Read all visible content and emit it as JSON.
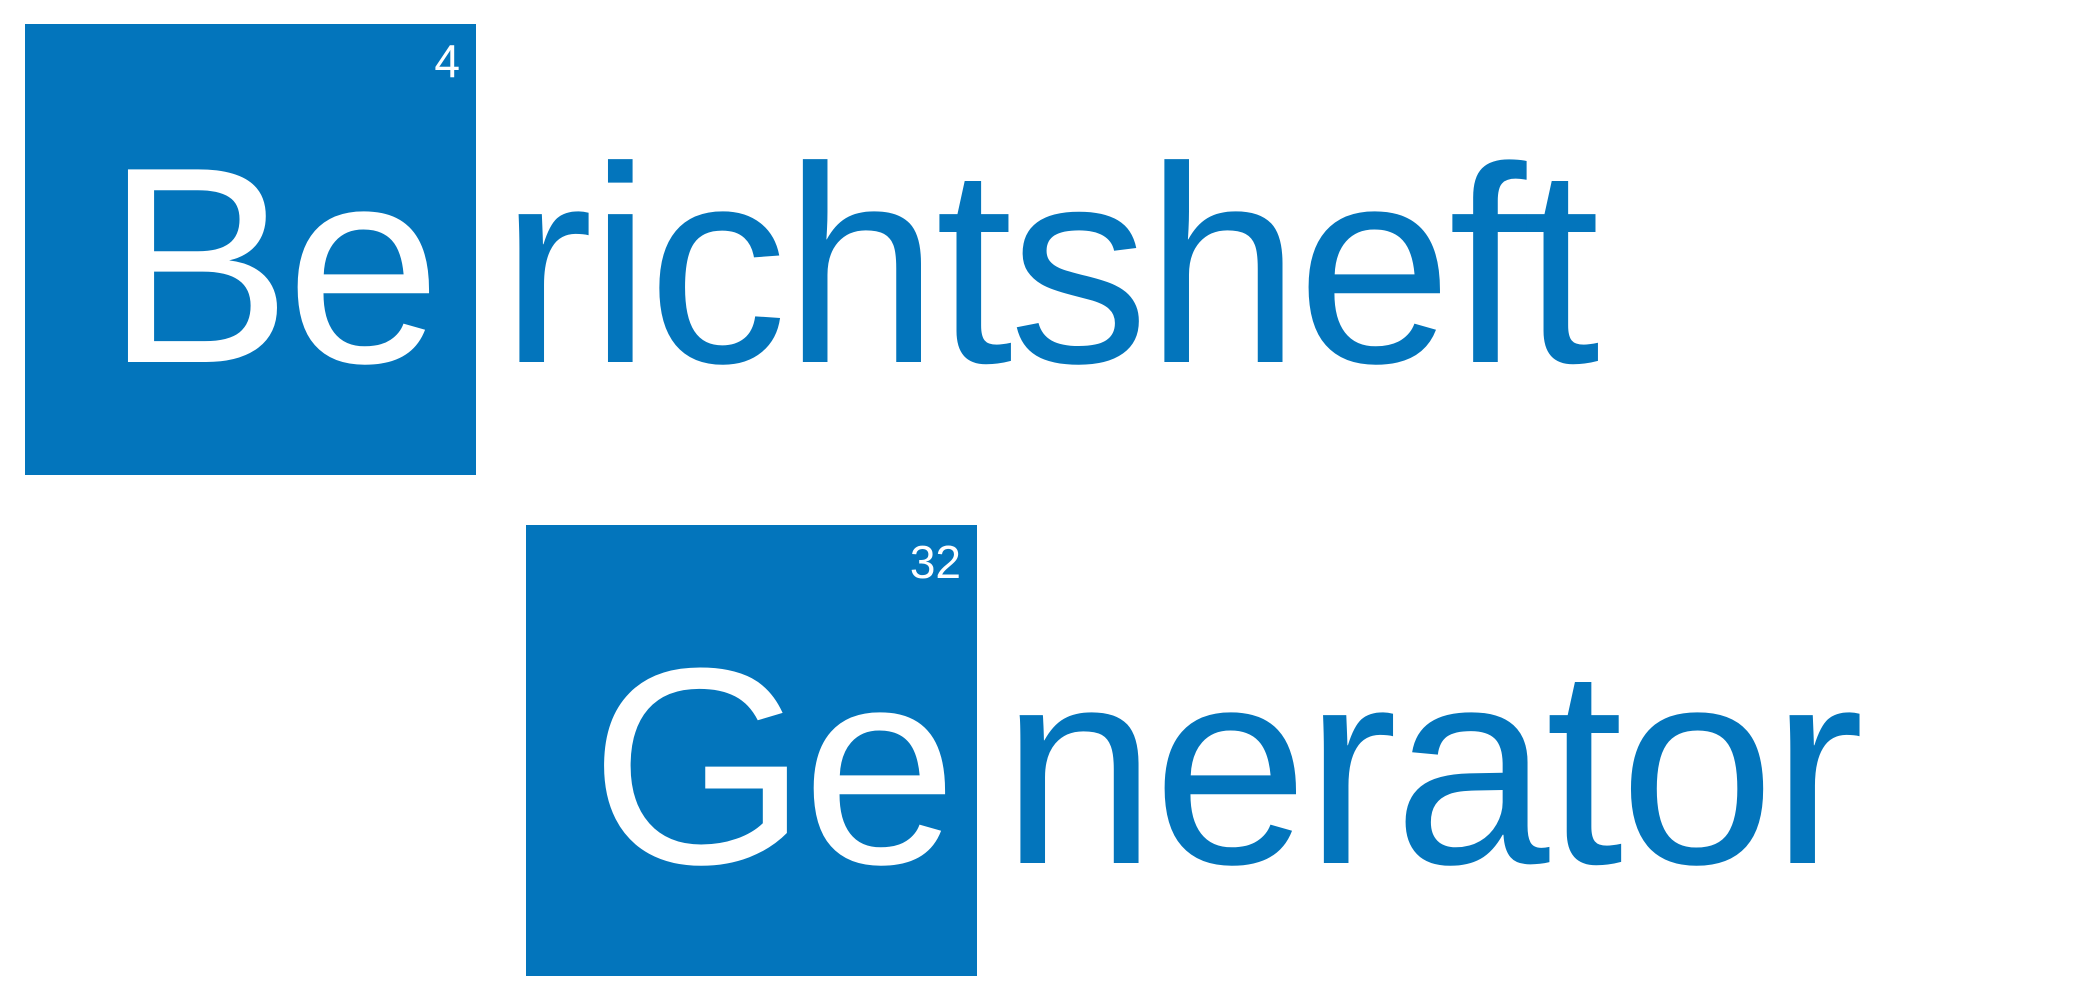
{
  "colors": {
    "brand_blue": "#0375bc",
    "text_on_tile": "#ffffff",
    "background": "#ffffff"
  },
  "line1": {
    "tile_number": "4",
    "tile_symbol": "Be",
    "rest": "richtsheft"
  },
  "line2": {
    "tile_number": "32",
    "tile_symbol": "Ge",
    "rest": "nerator"
  }
}
